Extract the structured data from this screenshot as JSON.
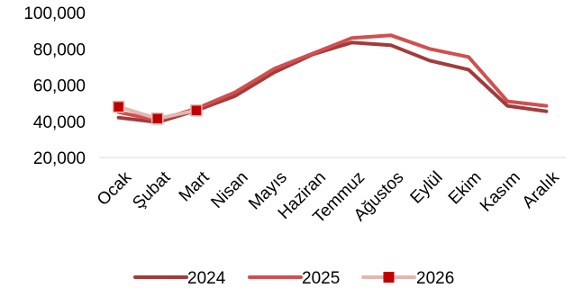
{
  "chart_data": {
    "type": "line",
    "title": "",
    "xlabel": "",
    "ylabel": "",
    "categories": [
      "Ocak",
      "Şubat",
      "Mart",
      "Nisan",
      "Mayıs",
      "Haziran",
      "Temmuz",
      "Ağustos",
      "Eylül",
      "Ekim",
      "Kasım",
      "Aralık"
    ],
    "ylim": [
      20000,
      100000
    ],
    "yticks": [
      20000,
      40000,
      60000,
      80000,
      100000
    ],
    "ytick_labels": [
      "20,000",
      "40,000",
      "60,000",
      "80,000",
      "100,000"
    ],
    "grid": false,
    "legend_position": "bottom",
    "series": [
      {
        "name": "2024",
        "color": "#a23b3b",
        "marker": "none",
        "values": [
          42000,
          39500,
          46000,
          54000,
          67000,
          77000,
          83500,
          82000,
          73500,
          68500,
          48500,
          45500
        ]
      },
      {
        "name": "2025",
        "color": "#d14f4f",
        "marker": "none",
        "values": [
          45000,
          40500,
          47000,
          56000,
          69000,
          77500,
          86000,
          87500,
          80000,
          75500,
          51000,
          48500
        ]
      },
      {
        "name": "2026",
        "color": "#e3b7b1",
        "marker": "square",
        "marker_color": "#c00000",
        "values": [
          48000,
          41500,
          46000,
          null,
          null,
          null,
          null,
          null,
          null,
          null,
          null,
          null
        ]
      }
    ]
  }
}
